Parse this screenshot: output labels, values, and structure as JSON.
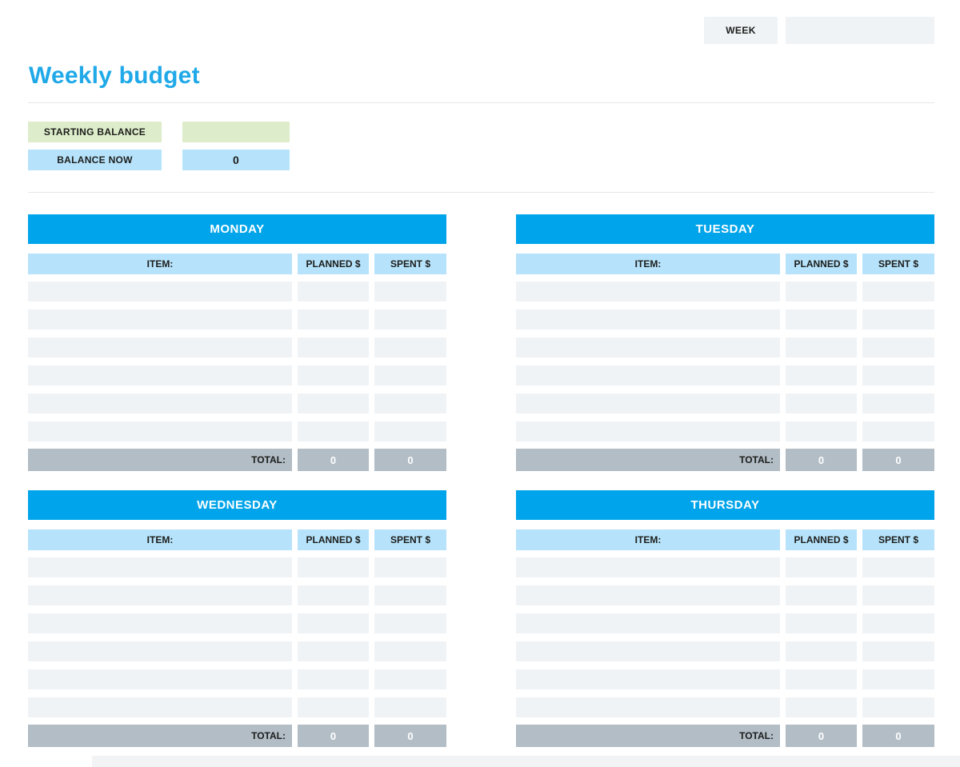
{
  "colors": {
    "title_blue": "#1fa9e8",
    "day_header_bg": "#00a4ea",
    "light_blue": "#b6e3fb",
    "row_bg": "#eff3f6",
    "total_bg": "#b2bdc6",
    "green": "#ddedcb",
    "week_box_bg": "#eff3f6"
  },
  "header": {
    "week_label": "WEEK",
    "week_value": ""
  },
  "page_title": "Weekly budget",
  "balance": {
    "starting_label": "STARTING BALANCE",
    "starting_value": "",
    "now_label": "BALANCE NOW",
    "now_value": "0"
  },
  "table_columns": {
    "item": "ITEM:",
    "planned": "PLANNED $",
    "spent": "SPENT $"
  },
  "total_label": "TOTAL:",
  "empty_row_count": 6,
  "days": [
    {
      "name": "MONDAY",
      "total_planned": "0",
      "total_spent": "0"
    },
    {
      "name": "TUESDAY",
      "total_planned": "0",
      "total_spent": "0"
    },
    {
      "name": "WEDNESDAY",
      "total_planned": "0",
      "total_spent": "0"
    },
    {
      "name": "THURSDAY",
      "total_planned": "0",
      "total_spent": "0"
    }
  ]
}
